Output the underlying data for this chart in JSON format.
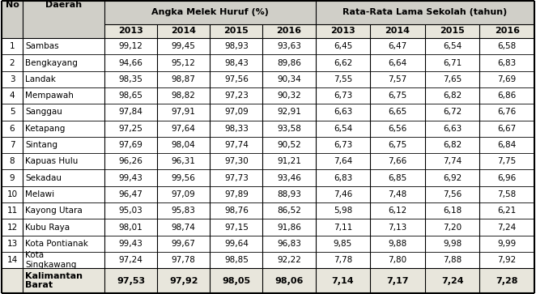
{
  "col_header_1": "Angka Melek Huruf (%)",
  "col_header_2": "Rata-Rata Lama Sekolah (tahun)",
  "years": [
    "2013",
    "2014",
    "2015",
    "2016"
  ],
  "rows": [
    [
      1,
      "Sambas",
      "99,12",
      "99,45",
      "98,93",
      "93,63",
      "6,45",
      "6,47",
      "6,54",
      "6,58"
    ],
    [
      2,
      "Bengkayang",
      "94,66",
      "95,12",
      "98,43",
      "89,86",
      "6,62",
      "6,64",
      "6,71",
      "6,83"
    ],
    [
      3,
      "Landak",
      "98,35",
      "98,87",
      "97,56",
      "90,34",
      "7,55",
      "7,57",
      "7,65",
      "7,69"
    ],
    [
      4,
      "Mempawah",
      "98,65",
      "98,82",
      "97,23",
      "90,32",
      "6,73",
      "6,75",
      "6,82",
      "6,86"
    ],
    [
      5,
      "Sanggau",
      "97,84",
      "97,91",
      "97,09",
      "92,91",
      "6,63",
      "6,65",
      "6,72",
      "6,76"
    ],
    [
      6,
      "Ketapang",
      "97,25",
      "97,64",
      "98,33",
      "93,58",
      "6,54",
      "6,56",
      "6,63",
      "6,67"
    ],
    [
      7,
      "Sintang",
      "97,69",
      "98,04",
      "97,74",
      "90,52",
      "6,73",
      "6,75",
      "6,82",
      "6,84"
    ],
    [
      8,
      "Kapuas Hulu",
      "96,26",
      "96,31",
      "97,30",
      "91,21",
      "7,64",
      "7,66",
      "7,74",
      "7,75"
    ],
    [
      9,
      "Sekadau",
      "99,43",
      "99,56",
      "97,73",
      "93,46",
      "6,83",
      "6,85",
      "6,92",
      "6,96"
    ],
    [
      10,
      "Melawi",
      "96,47",
      "97,09",
      "97,89",
      "88,93",
      "7,46",
      "7,48",
      "7,56",
      "7,58"
    ],
    [
      11,
      "Kayong Utara",
      "95,03",
      "95,83",
      "98,76",
      "86,52",
      "5,98",
      "6,12",
      "6,18",
      "6,21"
    ],
    [
      12,
      "Kubu Raya",
      "98,01",
      "98,74",
      "97,15",
      "91,86",
      "7,11",
      "7,13",
      "7,20",
      "7,24"
    ],
    [
      13,
      "Kota Pontianak",
      "99,43",
      "99,67",
      "99,64",
      "96,83",
      "9,85",
      "9,88",
      "9,98",
      "9,99"
    ],
    [
      14,
      "Kota\nSingkawang",
      "97,24",
      "97,78",
      "98,85",
      "92,22",
      "7,78",
      "7,80",
      "7,88",
      "7,92"
    ]
  ],
  "footer_label": "Kalimantan\nBarat",
  "footer_vals": [
    "97,53",
    "97,92",
    "98,05",
    "98,06",
    "7,14",
    "7,17",
    "7,24",
    "7,28"
  ],
  "hdr_bg": "#d0cfc8",
  "sub_bg": "#e8e6dc",
  "white_bg": "#ffffff",
  "border_col": "#000000",
  "header_fs": 8.0,
  "cell_fs": 7.5,
  "footer_fs": 8.0
}
